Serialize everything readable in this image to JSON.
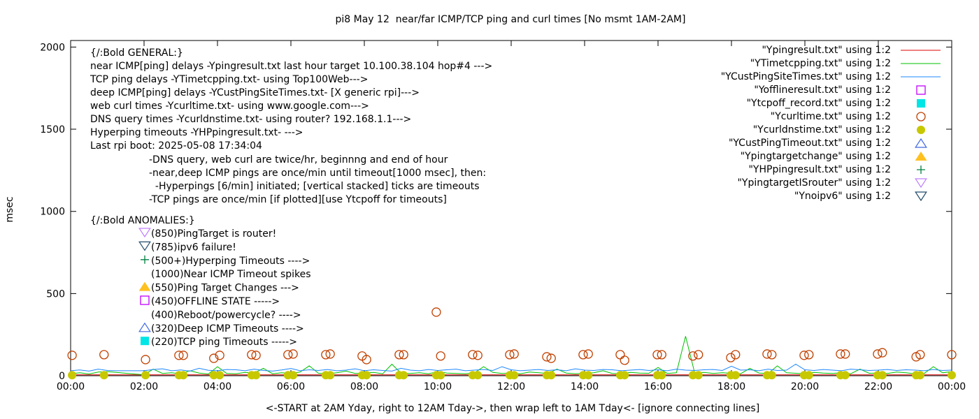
{
  "chart_data": {
    "type": "line",
    "title": "pi8 May 12  near/far ICMP/TCP ping and curl times [No msmt 1AM-2AM]",
    "xlabel": "<-START at 2AM Yday, right to 12AM Tday->, then wrap left to 1AM Tday<- [ignore connecting lines]",
    "ylabel": "msec",
    "xlim_hours": [
      0,
      24
    ],
    "ylim": [
      0,
      2040
    ],
    "x_ticks": [
      "00:00",
      "02:00",
      "04:00",
      "06:00",
      "08:00",
      "10:00",
      "12:00",
      "14:00",
      "16:00",
      "18:00",
      "20:00",
      "22:00",
      "00:00"
    ],
    "y_ticks": [
      0,
      500,
      1000,
      1500,
      2000
    ],
    "grid": false,
    "legend_placement": "top-right",
    "legend": [
      {
        "label": "\"Ypingresult.txt\" using 1:2",
        "kind": "line",
        "color": "#e00000"
      },
      {
        "label": "\"YTimetcpping.txt\" using 1:2",
        "kind": "line",
        "color": "#00c000"
      },
      {
        "label": "\"YCustPingSiteTimes.txt\" using 1:2",
        "kind": "line",
        "color": "#1e88ff"
      },
      {
        "label": "\"Yofflineresult.txt\" using 1:2",
        "kind": "open-square",
        "color": "#c000ff"
      },
      {
        "label": "\"Ytcpoff_record.txt\" using 1:2",
        "kind": "filled-square",
        "color": "#00e5e5"
      },
      {
        "label": "\"Ycurltime.txt\" using 1:2",
        "kind": "open-circle",
        "color": "#c04000"
      },
      {
        "label": "\"Ycurldnstime.txt\" using 1:2",
        "kind": "filled-circle",
        "color": "#c8c800"
      },
      {
        "label": "\"YCustPingTimeout.txt\" using 1:2",
        "kind": "open-triangle-up",
        "color": "#4169e1"
      },
      {
        "label": "\"Ypingtargetchange\" using 1:2",
        "kind": "filled-triangle-up",
        "color": "#ffc020"
      },
      {
        "label": "\"YHPpingresult.txt\" using 1:2",
        "kind": "plus",
        "color": "#008040"
      },
      {
        "label": "\"YpingtargetISrouter\" using 1:2",
        "kind": "open-triangle-down",
        "color": "#c080ff"
      },
      {
        "label": "\"Ynoipv6\" using 1:2",
        "kind": "open-triangle-down",
        "color": "#204a6a"
      }
    ],
    "series": [
      {
        "name": "\"Ypingresult.txt\" using 1:2",
        "color": "#e00000",
        "x_step_hours": 0.25,
        "values": [
          5,
          5,
          5,
          5,
          5,
          5,
          5,
          5,
          5,
          5,
          5,
          5,
          5,
          5,
          5,
          5,
          5,
          5,
          5,
          5,
          5,
          5,
          5,
          5,
          5,
          5,
          5,
          5,
          5,
          5,
          5,
          5,
          5,
          5,
          5,
          5,
          5,
          5,
          5,
          5,
          5,
          5,
          5,
          5,
          5,
          5,
          5,
          5,
          5,
          5,
          5,
          5,
          5,
          5,
          5,
          5,
          5,
          5,
          5,
          5,
          5,
          5,
          5,
          5,
          5,
          5,
          5,
          5,
          5,
          5,
          5,
          5,
          5,
          5,
          5,
          5,
          5,
          5,
          5,
          5,
          5,
          5,
          5,
          5,
          5,
          5,
          5,
          5,
          5,
          5,
          5,
          5,
          5,
          5,
          5,
          5,
          5
        ]
      },
      {
        "name": "\"YTimetcpping.txt\" using 1:2",
        "color": "#00c000",
        "x_step_hours": 0.25,
        "values": [
          12,
          18,
          10,
          22,
          25,
          20,
          15,
          10,
          6,
          40,
          14,
          18,
          12,
          30,
          16,
          10,
          55,
          14,
          12,
          20,
          16,
          45,
          12,
          18,
          14,
          22,
          60,
          15,
          12,
          18,
          28,
          14,
          16,
          20,
          12,
          70,
          15,
          14,
          18,
          12,
          25,
          16,
          14,
          12,
          18,
          55,
          20,
          14,
          16,
          12,
          22,
          18,
          14,
          40,
          16,
          12,
          15,
          18,
          30,
          14,
          12,
          20,
          16,
          15,
          50,
          14,
          18,
          240,
          16,
          20,
          14,
          18,
          15,
          12,
          45,
          16,
          14,
          60,
          18,
          15,
          12,
          20,
          16,
          14,
          18,
          12,
          40,
          15,
          16,
          14,
          22,
          18,
          12,
          14,
          55,
          18,
          25
        ]
      },
      {
        "name": "\"YCustPingSiteTimes.txt\" using 1:2",
        "color": "#1e88ff",
        "x_step_hours": 0.25,
        "values": [
          30,
          35,
          28,
          40,
          32,
          30,
          30,
          30,
          30,
          38,
          42,
          30,
          35,
          28,
          45,
          33,
          30,
          38,
          36,
          30,
          40,
          32,
          28,
          35,
          44,
          30,
          36,
          32,
          38,
          30,
          34,
          42,
          30,
          36,
          32,
          28,
          45,
          34,
          30,
          38,
          32,
          36,
          40,
          30,
          34,
          38,
          32,
          55,
          36,
          30,
          34,
          38,
          32,
          36,
          30,
          42,
          34,
          32,
          38,
          36,
          30,
          34,
          38,
          32,
          36,
          30,
          40,
          34,
          32,
          36,
          38,
          32,
          58,
          34,
          36,
          30,
          40,
          32,
          34,
          70,
          36,
          32,
          38,
          34,
          30,
          40,
          36,
          32,
          34,
          38,
          32,
          36,
          34,
          30,
          38,
          32,
          34
        ]
      },
      {
        "name": "\"Ycurltime.txt\" using 1:2",
        "color": "#c04000",
        "marker": "open-circle",
        "points": [
          [
            0.04,
            124
          ],
          [
            0.91,
            128
          ],
          [
            2.04,
            98
          ],
          [
            2.95,
            124
          ],
          [
            3.07,
            124
          ],
          [
            3.9,
            106
          ],
          [
            4.06,
            124
          ],
          [
            4.93,
            128
          ],
          [
            5.05,
            124
          ],
          [
            5.92,
            128
          ],
          [
            6.06,
            132
          ],
          [
            6.95,
            128
          ],
          [
            7.07,
            132
          ],
          [
            7.94,
            120
          ],
          [
            8.06,
            98
          ],
          [
            8.95,
            128
          ],
          [
            9.07,
            128
          ],
          [
            9.96,
            387
          ],
          [
            10.08,
            120
          ],
          [
            10.95,
            128
          ],
          [
            11.09,
            124
          ],
          [
            11.96,
            128
          ],
          [
            12.08,
            132
          ],
          [
            12.97,
            115
          ],
          [
            13.09,
            106
          ],
          [
            13.96,
            128
          ],
          [
            14.1,
            132
          ],
          [
            14.97,
            128
          ],
          [
            15.09,
            94
          ],
          [
            15.98,
            128
          ],
          [
            16.1,
            128
          ],
          [
            16.95,
            120
          ],
          [
            17.1,
            128
          ],
          [
            17.98,
            110
          ],
          [
            18.11,
            128
          ],
          [
            18.97,
            132
          ],
          [
            19.1,
            128
          ],
          [
            19.98,
            124
          ],
          [
            20.11,
            128
          ],
          [
            20.97,
            132
          ],
          [
            21.1,
            132
          ],
          [
            21.98,
            132
          ],
          [
            22.11,
            140
          ],
          [
            23.03,
            115
          ],
          [
            23.14,
            128
          ],
          [
            24.0,
            128
          ]
        ]
      },
      {
        "name": "\"Ycurldnstime.txt\" using 1:2",
        "color": "#c8c800",
        "marker": "filled-circle",
        "points": [
          [
            0.04,
            3
          ],
          [
            0.91,
            3
          ],
          [
            2.04,
            3
          ],
          [
            2.95,
            3
          ],
          [
            3.07,
            3
          ],
          [
            3.9,
            3
          ],
          [
            4.06,
            3
          ],
          [
            4.93,
            3
          ],
          [
            5.05,
            3
          ],
          [
            5.92,
            3
          ],
          [
            6.06,
            3
          ],
          [
            6.95,
            3
          ],
          [
            7.07,
            3
          ],
          [
            7.94,
            3
          ],
          [
            8.06,
            3
          ],
          [
            8.95,
            3
          ],
          [
            9.07,
            3
          ],
          [
            9.96,
            3
          ],
          [
            10.08,
            3
          ],
          [
            10.95,
            3
          ],
          [
            11.09,
            3
          ],
          [
            11.96,
            3
          ],
          [
            12.08,
            3
          ],
          [
            12.97,
            3
          ],
          [
            13.09,
            3
          ],
          [
            13.96,
            3
          ],
          [
            14.1,
            3
          ],
          [
            14.97,
            3
          ],
          [
            15.09,
            3
          ],
          [
            15.98,
            3
          ],
          [
            16.1,
            3
          ],
          [
            16.95,
            3
          ],
          [
            17.1,
            3
          ],
          [
            17.98,
            3
          ],
          [
            18.11,
            3
          ],
          [
            18.97,
            3
          ],
          [
            19.1,
            3
          ],
          [
            19.98,
            3
          ],
          [
            20.11,
            3
          ],
          [
            20.97,
            3
          ],
          [
            21.1,
            3
          ],
          [
            21.98,
            3
          ],
          [
            22.11,
            3
          ],
          [
            23.03,
            3
          ],
          [
            23.14,
            3
          ],
          [
            24.0,
            3
          ]
        ]
      }
    ],
    "annotations": {
      "general": [
        "{/:Bold GENERAL:}",
        "near ICMP[ping] delays -Ypingresult.txt last hour target 10.100.38.104 hop#4 --->",
        "TCP ping delays -YTimetcpping.txt- using Top100Web--->",
        "deep ICMP[ping] delays -YCustPingSiteTimes.txt- [X generic rpi]--->",
        "web curl times -Ycurltime.txt- using www.google.com--->",
        "DNS query times -Ycurldnstime.txt- using router? 192.168.1.1--->",
        "Hyperping timeouts -YHPpingresult.txt- --->",
        "Last rpi boot: 2025-05-08 17:34:04"
      ],
      "notes": [
        "-DNS query, web curl are twice/hr, beginnng and end of hour",
        "-near,deep ICMP pings are once/min until timeout[1000 msec], then:",
        "  -Hyperpings [6/min] initiated; [vertical stacked] ticks are timeouts",
        "-TCP pings are once/min [if plotted][use Ytcpoff for timeouts]"
      ],
      "anomalies_title": "{/:Bold ANOMALIES:}",
      "anomalies": [
        {
          "text": "(850)PingTarget is router!",
          "marker": "open-triangle-down",
          "color": "#c080ff"
        },
        {
          "text": "(785)ipv6 failure!",
          "marker": "open-triangle-down",
          "color": "#204a6a"
        },
        {
          "text": "(500+)Hyperping Timeouts ---->",
          "marker": "plus",
          "color": "#008040"
        },
        {
          "text": "(1000)Near ICMP Timeout spikes",
          "marker": "none",
          "color": ""
        },
        {
          "text": "(550)Ping Target Changes --->",
          "marker": "filled-triangle-up",
          "color": "#ffc020"
        },
        {
          "text": "(450)OFFLINE STATE ----->",
          "marker": "open-square",
          "color": "#c000ff"
        },
        {
          "text": "(400)Reboot/powercycle? ---->",
          "marker": "none",
          "color": ""
        },
        {
          "text": "(320)Deep ICMP Timeouts ---->",
          "marker": "open-triangle-up",
          "color": "#4169e1"
        },
        {
          "text": "(220)TCP ping Timeouts ----->",
          "marker": "filled-square",
          "color": "#00e5e5"
        }
      ]
    }
  }
}
